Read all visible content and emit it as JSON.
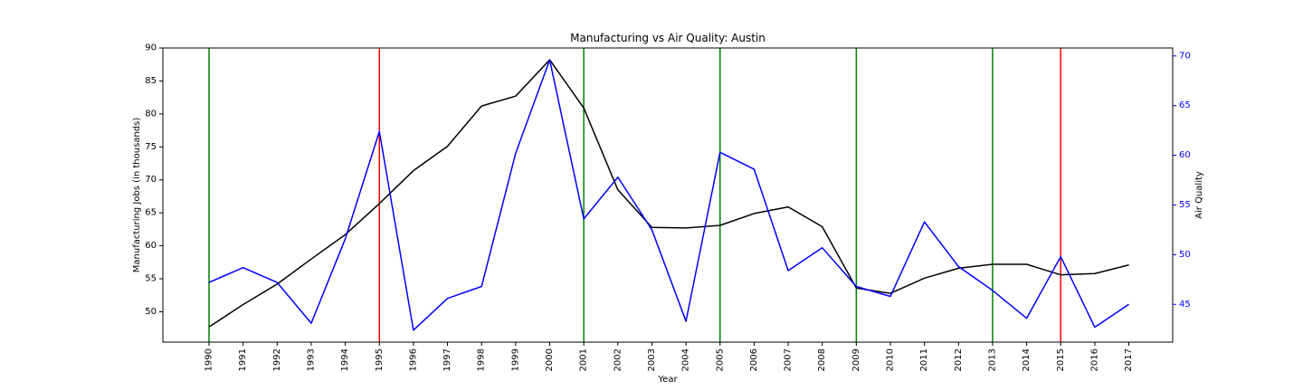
{
  "chart_data": {
    "type": "line",
    "title": "Manufacturing vs Air Quality: Austin",
    "xlabel": "Year",
    "ylabel_left": "Manufacturing Jobs (in thousands)",
    "ylabel_right": "Air Quality",
    "x": [
      1990,
      1991,
      1992,
      1993,
      1994,
      1995,
      1996,
      1997,
      1998,
      1999,
      2000,
      2001,
      2002,
      2003,
      2004,
      2005,
      2006,
      2007,
      2008,
      2009,
      2010,
      2011,
      2012,
      2013,
      2014,
      2015,
      2016,
      2017
    ],
    "y_left_lim": [
      45.4,
      90
    ],
    "y_left_ticks": [
      50,
      55,
      60,
      65,
      70,
      75,
      80,
      85,
      90
    ],
    "y_right_lim": [
      41.2,
      70.8
    ],
    "y_right_ticks": [
      45,
      50,
      55,
      60,
      65,
      70
    ],
    "series": [
      {
        "axis": "left",
        "color": "#000000",
        "values": [
          47.7,
          51.1,
          54.2,
          58.0,
          61.7,
          66.4,
          71.4,
          75.1,
          81.2,
          82.7,
          88.2,
          80.9,
          68.5,
          62.8,
          62.7,
          63.1,
          64.9,
          65.9,
          62.9,
          53.6,
          52.8,
          55.1,
          56.6,
          57.2,
          57.2,
          55.6,
          55.8,
          57.1
        ]
      },
      {
        "axis": "right",
        "color": "#0000ff",
        "values": [
          47.2,
          48.7,
          47.2,
          43.1,
          51.6,
          62.4,
          42.4,
          45.6,
          46.8,
          60.2,
          69.6,
          53.6,
          57.8,
          52.5,
          43.3,
          60.3,
          58.6,
          48.4,
          50.7,
          46.8,
          45.8,
          53.3,
          48.8,
          46.4,
          43.6,
          49.8,
          42.7,
          45.0
        ]
      }
    ],
    "vlines": [
      {
        "x": 1990,
        "color": "#008000"
      },
      {
        "x": 1995,
        "color": "#ff0000"
      },
      {
        "x": 2001,
        "color": "#008000"
      },
      {
        "x": 2005,
        "color": "#008000"
      },
      {
        "x": 2009,
        "color": "#008000"
      },
      {
        "x": 2013,
        "color": "#008000"
      },
      {
        "x": 2015,
        "color": "#ff0000"
      }
    ],
    "x_axis_color": "#000000",
    "right_axis_color": "#0000ff",
    "grid": false
  }
}
